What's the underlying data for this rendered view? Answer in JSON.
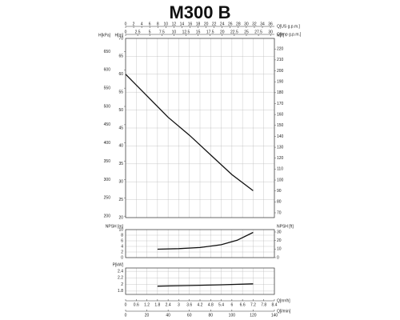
{
  "chart_data": [
    {
      "type": "line",
      "title": "M300 B",
      "top_axes": [
        {
          "label": "Q[US g.p.m.]",
          "lim": [
            0,
            36.98
          ],
          "ticks": [
            0,
            2,
            4,
            6,
            8,
            10,
            12,
            14,
            16,
            18,
            20,
            22,
            24,
            26,
            28,
            30,
            32,
            34,
            36
          ]
        },
        {
          "label": "Q[Imp g.p.m.]",
          "lim": [
            0,
            30.8
          ],
          "ticks": [
            0,
            2.5,
            5,
            7.5,
            10,
            12.5,
            15,
            17.5,
            20,
            22.5,
            25,
            27.5,
            30
          ]
        }
      ],
      "x": [
        0,
        20,
        40,
        60,
        80,
        100,
        120
      ],
      "xlim": [
        0,
        140
      ],
      "y_axes": [
        {
          "label": "H[m]",
          "side": "left",
          "lim": [
            20,
            70
          ],
          "ticks": [
            20,
            25,
            30,
            35,
            40,
            45,
            50,
            55,
            60,
            65,
            70
          ]
        },
        {
          "label": "H[kPa]",
          "side": "left",
          "lim": [
            196,
            686
          ],
          "ticks": [
            200,
            250,
            300,
            350,
            400,
            450,
            500,
            550,
            600,
            650
          ]
        },
        {
          "label": "H[ft]",
          "side": "right",
          "lim": [
            65.6,
            229.7
          ],
          "ticks": [
            70,
            80,
            90,
            100,
            110,
            120,
            130,
            140,
            150,
            160,
            170,
            180,
            190,
            200,
            210,
            220
          ]
        }
      ],
      "series": [
        {
          "color": "#111111",
          "values": [
            60,
            54,
            48,
            43,
            37.5,
            32,
            27.5
          ]
        }
      ],
      "grid": true
    },
    {
      "type": "line",
      "x": [
        30,
        50,
        70,
        90,
        105,
        120
      ],
      "xlim": [
        0,
        140
      ],
      "y_axes": [
        {
          "label": "NPSH [m]",
          "side": "left",
          "lim": [
            0,
            10
          ],
          "ticks": [
            0,
            2,
            4,
            6,
            8,
            10
          ]
        },
        {
          "label": "NPSH [ft]",
          "side": "right",
          "lim": [
            0,
            32.8
          ],
          "ticks": [
            0,
            10,
            20,
            30
          ]
        }
      ],
      "series": [
        {
          "color": "#111111",
          "values": [
            3,
            3.2,
            3.6,
            4.6,
            6.2,
            9
          ]
        }
      ],
      "grid": true
    },
    {
      "type": "line",
      "x": [
        30,
        60,
        90,
        120
      ],
      "xlim": [
        0,
        140
      ],
      "y_axes": [
        {
          "label": "P[kW]",
          "side": "left",
          "lim": [
            1.7,
            2.5
          ],
          "ticks": [
            1.8,
            2,
            2.2,
            2.4
          ]
        }
      ],
      "series": [
        {
          "color": "#111111",
          "values": [
            1.95,
            1.97,
            1.99,
            2.02
          ]
        }
      ],
      "grid": true,
      "bottom_axes": [
        {
          "label": "Q[m³/h]",
          "lim": [
            0,
            8.4
          ],
          "ticks": [
            0,
            0.6,
            1.2,
            1.8,
            2.4,
            3,
            3.6,
            4.2,
            4.8,
            5.4,
            6,
            6.6,
            7.2,
            7.8,
            8.4
          ]
        },
        {
          "label": "Q[l/min]",
          "lim": [
            0,
            140
          ],
          "ticks": [
            0,
            20,
            40,
            60,
            80,
            100,
            120,
            140
          ]
        }
      ]
    }
  ]
}
